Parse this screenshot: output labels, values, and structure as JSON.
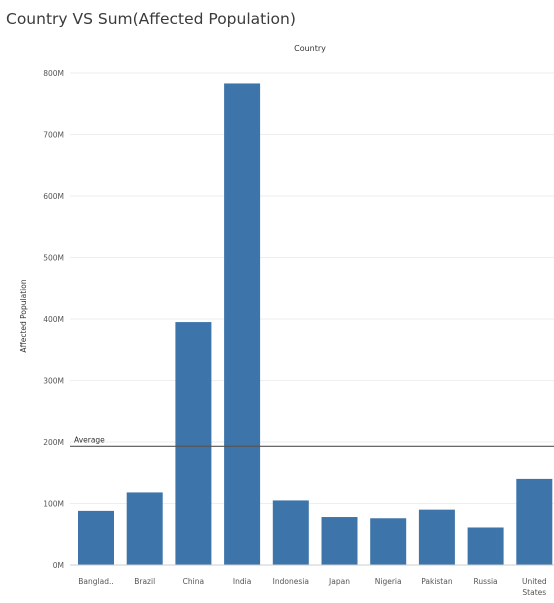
{
  "title": "Country VS Sum(Affected Population)",
  "chart_data": {
    "type": "bar",
    "title": "Country VS Sum(Affected Population)",
    "column_header": "Country",
    "xlabel": "",
    "ylabel": "Affected Population",
    "categories": [
      "Banglad..",
      "Brazil",
      "China",
      "India",
      "Indonesia",
      "Japan",
      "Nigeria",
      "Pakistan",
      "Russia",
      "United States"
    ],
    "values": [
      88000000,
      118000000,
      395000000,
      783000000,
      105000000,
      78000000,
      76000000,
      90000000,
      61000000,
      140000000
    ],
    "ylim": [
      0,
      800000000
    ],
    "yticks": [
      0,
      100000000,
      200000000,
      300000000,
      400000000,
      500000000,
      600000000,
      700000000,
      800000000
    ],
    "ytick_labels": [
      "0M",
      "100M",
      "200M",
      "300M",
      "400M",
      "500M",
      "600M",
      "700M",
      "800M"
    ],
    "reference_line": {
      "label": "Average",
      "value": 193000000
    },
    "grid": true,
    "bar_color": "#3d74aa",
    "reference_line_color": "#555555",
    "gridline_color": "#eeeeee",
    "text_color": "#555555"
  }
}
